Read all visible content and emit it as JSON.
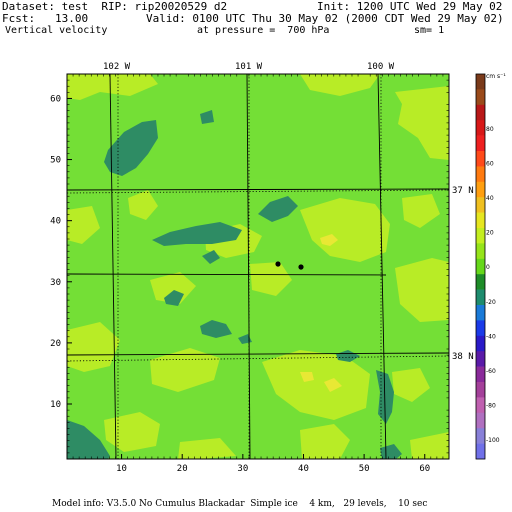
{
  "header": {
    "dataset": "Dataset: test  RIP: rip20020529 d2",
    "init": "Init: 1200 UTC Wed 29 May 02",
    "fcst": "Fcst:   13.00",
    "valid": "Valid: 0100 UTC Thu 30 May 02 (2000 CDT Wed 29 May 02)",
    "field": "Vertical velocity",
    "pressure": "at pressure =  700 hPa",
    "smooth": "sm= 1"
  },
  "map": {
    "top_lon_labels": [
      "102 W",
      "101 W",
      "100 W"
    ],
    "right_lat_labels": [
      "37 N",
      "38 N"
    ],
    "x_ticks": [
      "10",
      "20",
      "30",
      "40",
      "50",
      "60"
    ],
    "y_ticks": [
      "10",
      "20",
      "30",
      "40",
      "50",
      "60"
    ],
    "stations": [
      "station-1",
      "station-2"
    ]
  },
  "colorbar": {
    "unit": "cm s⁻¹",
    "labels": [
      "80",
      "60",
      "40",
      "20",
      "0",
      "-20",
      "-40",
      "-60",
      "-80",
      "-100"
    ],
    "colors": [
      "#7a3a1a",
      "#9a4a1a",
      "#b81818",
      "#d81818",
      "#ee2020",
      "#ff4a1a",
      "#ff7a10",
      "#ff9f10",
      "#f0c020",
      "#e6e620",
      "#c4ee20",
      "#96e41a",
      "#66d81a",
      "#1e8c28",
      "#1e8c6e",
      "#1a7ad8",
      "#1a3ae8",
      "#2a1ac8",
      "#5a1aa8",
      "#8a2a9a",
      "#a4409a",
      "#c060b0",
      "#b070c0",
      "#8880d8",
      "#7070e8"
    ],
    "palette": {
      "bg_green": "#74df36",
      "light_green": "#b8ec26",
      "teal": "#2e8c64",
      "dark_green": "#1e7f2e",
      "yellow": "#e8e834"
    }
  },
  "footer": {
    "model_info": "Model info: V3.5.0 No Cumulus Blackadar  Simple ice    4 km,   29 levels,    10 sec"
  }
}
